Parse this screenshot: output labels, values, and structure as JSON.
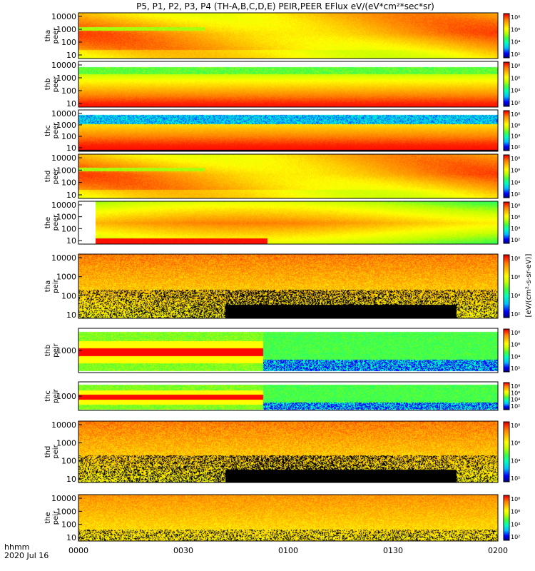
{
  "chart_data": {
    "type": "heatmap",
    "title": "P5, P1, P2, P3, P4 (TH-A,B,C,D,E) PEIR,PEER EFlux eV/(eV*cm²*sec*sr)",
    "colorbar_label": "[eV/(cm²-s-sr-eV)]",
    "xaxis": {
      "label": "hhmm",
      "date": "2020 Jul 16",
      "ticks": [
        "0000",
        "0030",
        "0100",
        "0130",
        "0200"
      ],
      "range_min": [
        0,
        120
      ]
    },
    "colorscale": [
      "#000080",
      "#0000ff",
      "#00bfff",
      "#00ffc0",
      "#40ff40",
      "#c0ff00",
      "#ffff00",
      "#ffc000",
      "#ff8000",
      "#ff2000",
      "#ff0000"
    ],
    "panels": [
      {
        "name": "tha-peer",
        "ylabel": [
          "tha",
          "peer"
        ],
        "yticks": [
          "10000",
          "1000",
          "100",
          "10"
        ],
        "cbar_ticks": [
          "10⁸",
          "10⁶",
          "10⁴",
          "10²"
        ],
        "kind": "flux_e_dense"
      },
      {
        "name": "thb-peer",
        "ylabel": [
          "thb",
          "peer"
        ],
        "yticks": [
          "10000",
          "1000",
          "100",
          "10"
        ],
        "cbar_ticks": [
          "10⁸",
          "10⁶",
          "10⁴",
          "10²"
        ],
        "kind": "electron_hot"
      },
      {
        "name": "thc-peer",
        "ylabel": [
          "thc",
          "peer"
        ],
        "yticks": [
          "10000",
          "1000",
          "100",
          "10"
        ],
        "cbar_ticks": [
          "10⁸",
          "10⁶",
          "10⁴",
          "10²"
        ],
        "kind": "electron_hot_noisy"
      },
      {
        "name": "thd-peer",
        "ylabel": [
          "thd",
          "peer"
        ],
        "yticks": [
          "10000",
          "1000",
          "100",
          "10"
        ],
        "cbar_ticks": [
          "10⁸",
          "10⁶",
          "10⁴",
          "10²"
        ],
        "kind": "flux_e_dense"
      },
      {
        "name": "the-peer",
        "ylabel": [
          "the",
          "peer"
        ],
        "yticks": [
          "10000",
          "1000",
          "100",
          "10"
        ],
        "cbar_ticks": [
          "10⁸",
          "10⁶",
          "10⁴",
          "10²"
        ],
        "kind": "electron_late"
      },
      {
        "name": "tha-peir",
        "ylabel": [
          "tha",
          "peir"
        ],
        "yticks": [
          "10000",
          "1000",
          "100",
          "10"
        ],
        "cbar_ticks": [
          "10⁸",
          "10⁶",
          "10⁴",
          "10²"
        ],
        "kind": "ion_black"
      },
      {
        "name": "thb-peir",
        "ylabel": [
          "thb",
          "peir"
        ],
        "yticks": [
          "1000"
        ],
        "cbar_ticks": [
          "10⁸",
          "10⁶",
          "10⁴",
          "10²"
        ],
        "kind": "ion_band"
      },
      {
        "name": "thc-peir",
        "ylabel": [
          "thc",
          "peir"
        ],
        "yticks": [
          "1000"
        ],
        "cbar_ticks": [
          "10⁸",
          "10⁶",
          "10⁴",
          "10²"
        ],
        "kind": "ion_band"
      },
      {
        "name": "thd-peir",
        "ylabel": [
          "thd",
          "peir"
        ],
        "yticks": [
          "10000",
          "1000",
          "100",
          "10"
        ],
        "cbar_ticks": [
          "10⁸",
          "10⁶",
          "10⁴",
          "10²"
        ],
        "kind": "ion_black"
      },
      {
        "name": "the-peir",
        "ylabel": [
          "the",
          "peir"
        ],
        "yticks": [
          "10000",
          "1000",
          "100",
          "10"
        ],
        "cbar_ticks": [
          "10⁸",
          "10⁶",
          "10⁴",
          "10²"
        ],
        "kind": "ion_light"
      }
    ]
  }
}
